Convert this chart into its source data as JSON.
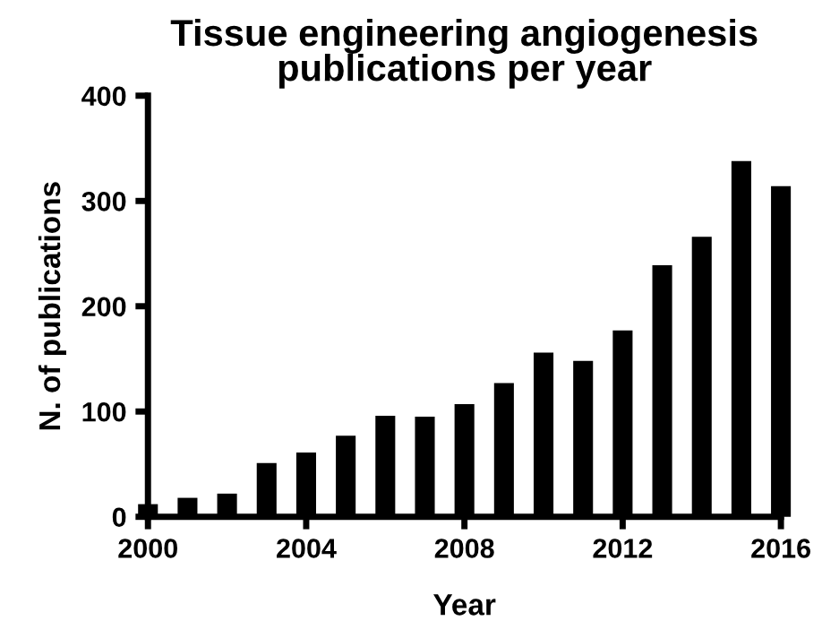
{
  "chart_data": {
    "type": "bar",
    "title": "Tissue engineering angiogenesis\npublications per year",
    "xlabel": "Year",
    "ylabel": "N. of publications",
    "x": [
      2000,
      2001,
      2002,
      2003,
      2004,
      2005,
      2006,
      2007,
      2008,
      2009,
      2010,
      2011,
      2012,
      2013,
      2014,
      2015,
      2016
    ],
    "values": [
      12,
      18,
      22,
      51,
      61,
      77,
      96,
      95,
      107,
      127,
      156,
      148,
      177,
      239,
      266,
      338,
      314
    ],
    "color": "#000000",
    "xlim": [
      2000,
      2016
    ],
    "xticks": [
      2000,
      2004,
      2008,
      2012,
      2016
    ],
    "ylim": [
      0,
      400
    ],
    "yticks": [
      0,
      100,
      200,
      300,
      400
    ],
    "grid": false
  }
}
